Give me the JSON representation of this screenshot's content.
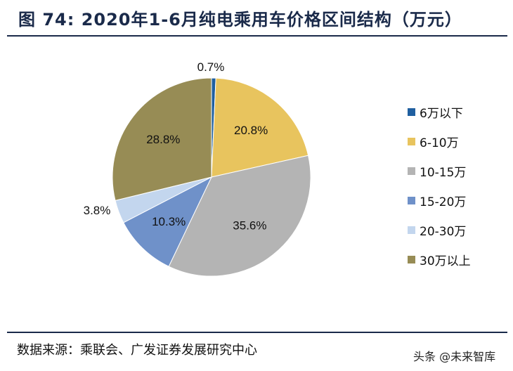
{
  "header": {
    "title": "图 74: 2020年1-6月纯电乘用车价格区间结构（万元）"
  },
  "footer": {
    "source": "数据来源：乘联会、广发证券发展研究中心",
    "watermark": "头条 @未来智库"
  },
  "chart_data": {
    "type": "pie",
    "title": "2020年1-6月纯电乘用车价格区间结构（万元）",
    "start_angle_deg": 0,
    "direction": "clockwise",
    "slices": [
      {
        "label": "6万以下",
        "value": 0.7,
        "display": "0.7%",
        "color": "#1f5fa0",
        "label_pos": "outside"
      },
      {
        "label": "6-10万",
        "value": 20.8,
        "display": "20.8%",
        "color": "#e8c45e",
        "label_pos": "inside"
      },
      {
        "label": "10-15万",
        "value": 35.6,
        "display": "35.6%",
        "color": "#b4b4b4",
        "label_pos": "inside"
      },
      {
        "label": "15-20万",
        "value": 10.3,
        "display": "10.3%",
        "color": "#6f91c9",
        "label_pos": "inside"
      },
      {
        "label": "20-30万",
        "value": 3.8,
        "display": "3.8%",
        "color": "#c3d6ee",
        "label_pos": "outside"
      },
      {
        "label": "30万以上",
        "value": 28.8,
        "display": "28.8%",
        "color": "#978c55",
        "label_pos": "inside"
      }
    ],
    "legend_position": "right"
  }
}
